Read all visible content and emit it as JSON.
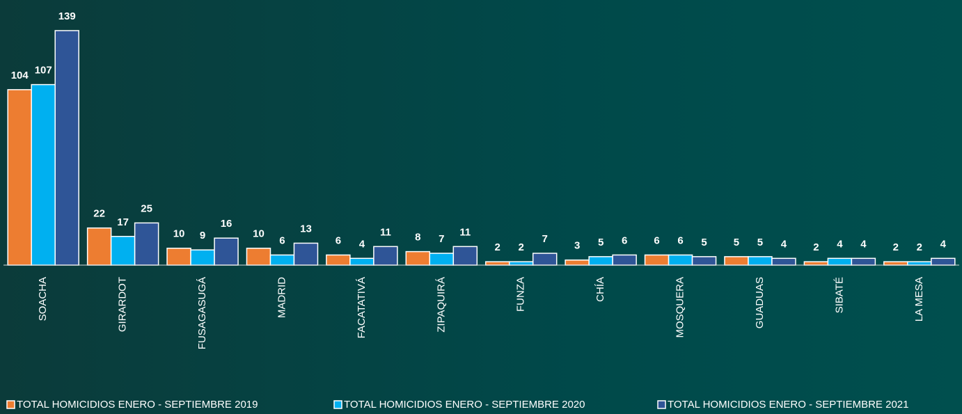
{
  "chart_data": {
    "type": "bar",
    "categories": [
      "SOACHA",
      "GIRARDOT",
      "FUSAGASUGÁ",
      "MADRID",
      "FACATATIVÁ",
      "ZIPAQUIRÁ",
      "FUNZA",
      "CHÍA",
      "MOSQUERA",
      "GUADUAS",
      "SIBATÉ",
      "LA MESA"
    ],
    "series": [
      {
        "name": "TOTAL HOMICIDIOS ENERO - SEPTIEMBRE 2019",
        "color": "#ED7D31",
        "values": [
          104,
          22,
          10,
          10,
          6,
          8,
          2,
          3,
          6,
          5,
          2,
          2
        ]
      },
      {
        "name": "TOTAL HOMICIDIOS ENERO - SEPTIEMBRE 2020",
        "color": "#00B0F0",
        "values": [
          107,
          17,
          9,
          6,
          4,
          7,
          2,
          5,
          6,
          5,
          4,
          2
        ]
      },
      {
        "name": "TOTAL HOMICIDIOS ENERO - SEPTIEMBRE 2021",
        "color": "#2F5597",
        "values": [
          139,
          25,
          16,
          13,
          11,
          11,
          7,
          6,
          5,
          4,
          4,
          4
        ]
      }
    ],
    "legend": "bottom"
  }
}
